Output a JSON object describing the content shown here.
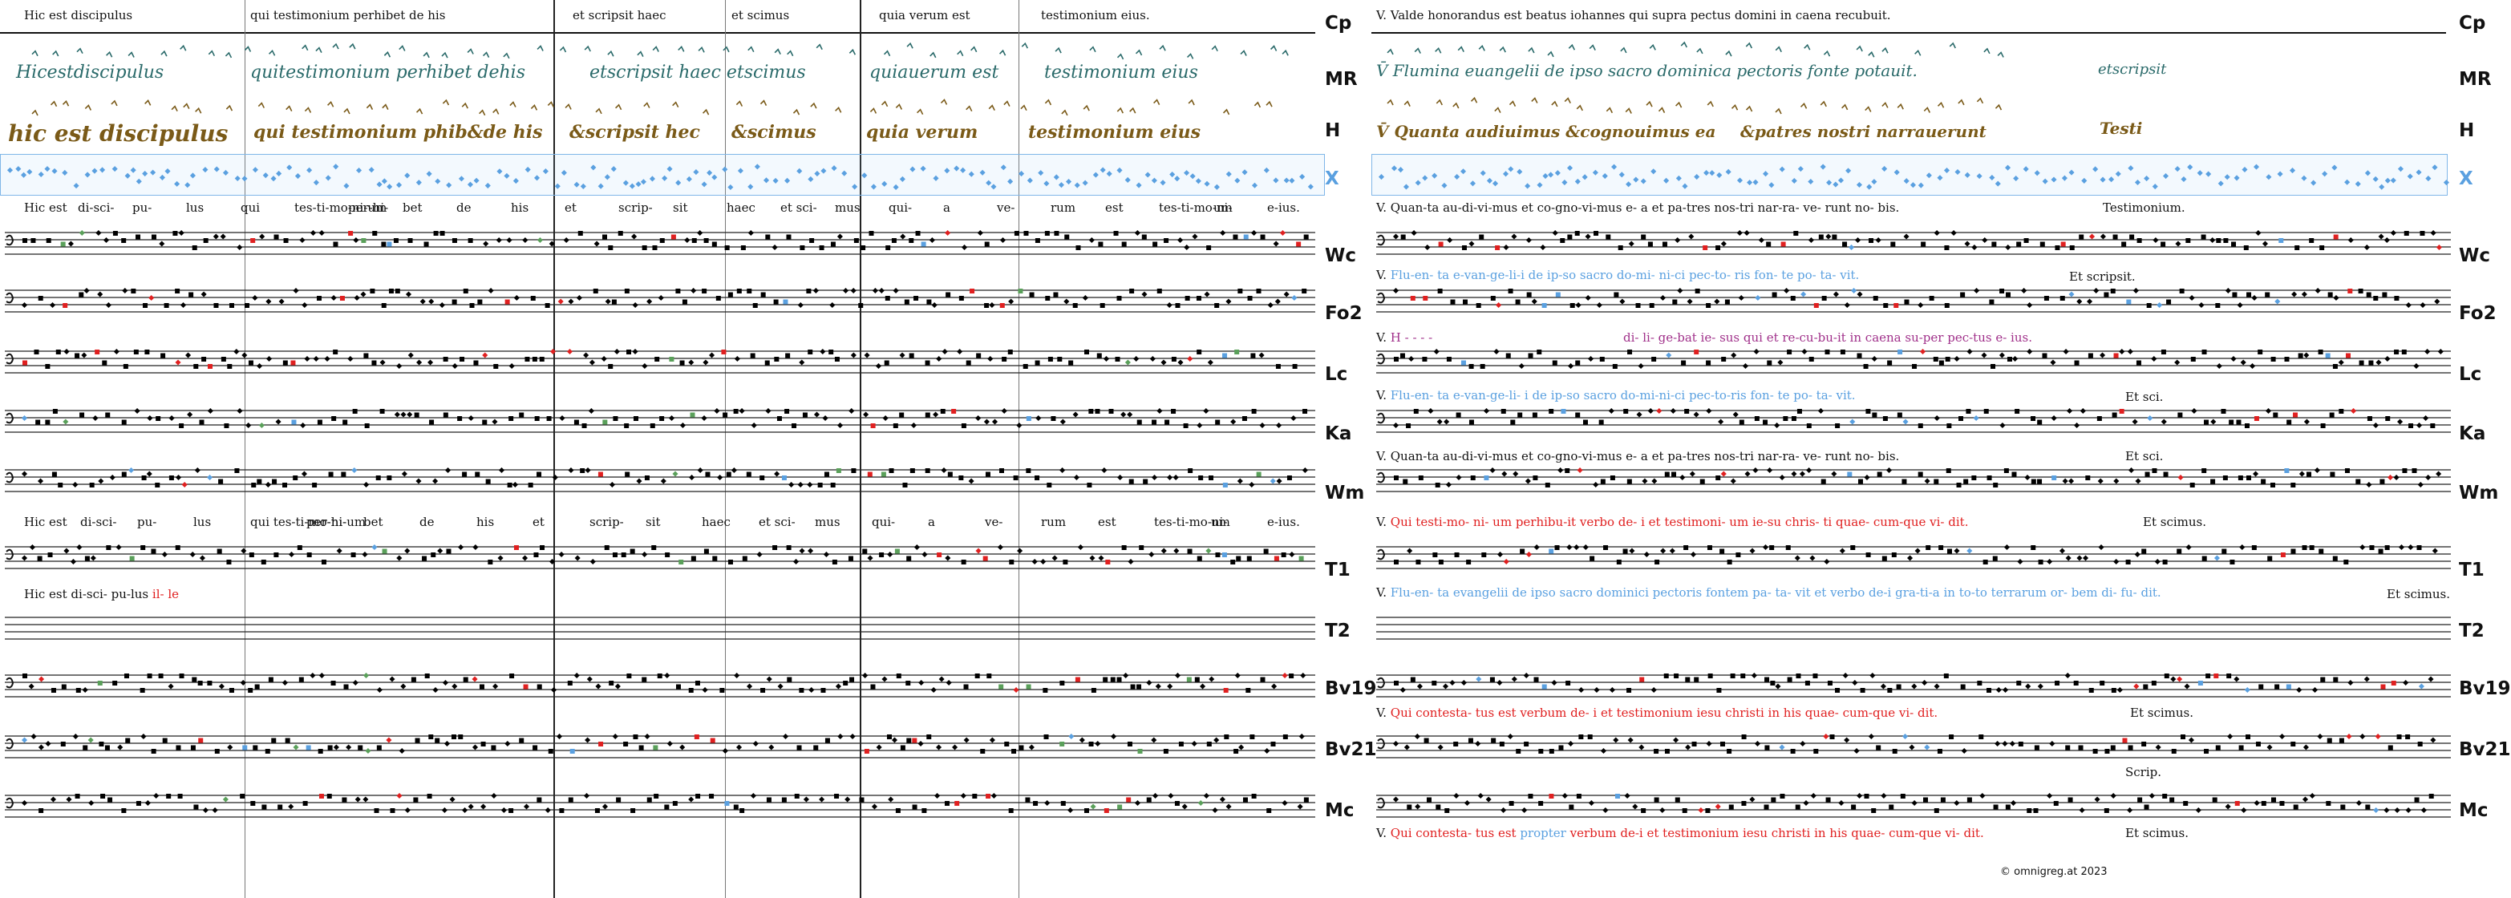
{
  "left_header": [
    "Hic est discipulus",
    "qui testimonium perhibet de his",
    "et scripsit haec",
    "et scimus",
    "quia verum est",
    "testimonium eius."
  ],
  "right_header": "V. Valde honorandus est beatus iohannes qui supra pectus domini in caena recubuit.",
  "row_labels": [
    "Cp",
    "MR",
    "H",
    "X",
    "Wc",
    "Fo2",
    "Lc",
    "Ka",
    "Wm",
    "T1",
    "T2",
    "Bv19",
    "Bv21",
    "Mc"
  ],
  "manuscripts": {
    "mr_left": [
      "Hicestdiscipulus",
      "quitestimonium perhibet dehis",
      "etscripsit haec etscimus",
      "quiauerum est",
      "testimonium eius"
    ],
    "h_left": [
      "hic est discipulus",
      "qui testimonium phib&de his",
      "&scripsit hec",
      "&scimus",
      "quia verum",
      "testimonium eius"
    ],
    "mr_right": [
      "V̄ Flumina euangelii de ipso sacro dominica pectoris fonte potauit.",
      "etscripsit"
    ],
    "h_right": [
      "V̄ Quanta audiuimus &cognouimus ea",
      "&patres nostri narrauerunt",
      "Testi"
    ]
  },
  "left_lyrics": {
    "x": [
      "Hic est",
      "di-sci-",
      "pu-",
      "lus",
      "qui",
      "tes-ti-mo-ni-um",
      "per-hi-",
      "bet",
      "de",
      "his",
      "et",
      "scrip-",
      "sit",
      "haec",
      "et sci-",
      "mus",
      "qui-",
      "a",
      "ve-",
      "rum",
      "est",
      "tes-ti-mo-ni-",
      "um",
      "e-ius."
    ],
    "wm": [
      "Hic est",
      "di-sci-",
      "pu-",
      "lus",
      "qui tes-ti-mo-ni-um",
      "per-hi-",
      "bet",
      "de",
      "his",
      "et",
      "scrip-",
      "sit",
      "haec",
      "et sci-",
      "mus",
      "qui-",
      "a",
      "ve-",
      "rum",
      "est",
      "tes-ti-mo-ni-",
      "um",
      "e-ius."
    ],
    "t1_black": "Hic est   di-sci- pu-lus",
    "t1_red": "il- le"
  },
  "right_lyrics": {
    "x": "V. Quan-ta    au-di-vi-mus   et co-gno-vi-mus  e-    a     et    pa-tres nos-tri  nar-ra-     ve-   runt    no-     bis.",
    "x_end": "Testimonium.",
    "wc_prefix": "V.",
    "wc_blue": "Flu-en-  ta         e-van-ge-li-i    de ip-so sacro do-mi- ni-ci pec-to- ris      fon-     te    po-      ta-      vit.",
    "wc_end": "Et scripsit.",
    "fo2_prefix": "V.",
    "fo2_h": "H  - - - -",
    "fo2_purple": "di- li-  ge-bat ie-  sus    qui et re-cu-bu-it in caena su-per    pec-tus    e-         ius.",
    "lc_prefix": "V.",
    "lc_blue": "Flu-en-  ta         e-van-ge-li-  i        de      ip-so sacro  do-mi-ni-ci pec-to-ris  fon-    te   po-       ta-      vit.",
    "lc_end": "Et sci.",
    "ka": "V. Quan-ta    au-di-vi-mus   et co-gno-vi-mus  e-    a     et    pa-tres nos-tri  nar-ra-     ve-   runt    no-     bis.",
    "ka_end": "Et sci.",
    "wm_prefix": "V.",
    "wm_red": "Qui testi-mo-   ni-  um       perhibu-it verbo de- i    et testimoni- um ie-su chris-  ti      quae-   cum-que       vi-      dit.",
    "wm_end": "Et scimus.",
    "t1_prefix": "V.",
    "t1_blue": "Flu-en-  ta         evangelii de ipso sacro dominici    pectoris fontem pa-  ta-  vit     et     verbo de-i  gra-ti-a  in to-to terrarum or-      bem di-          fu-        dit.",
    "t1_end": "Et scimus.",
    "bv19_prefix": "V.",
    "bv19_red": "Qui contesta-   tus   est       verbum de-   i      et      testimonium iesu christi in his quae-    cum-que       vi-        dit.",
    "bv19_end": "Et scimus.",
    "bv21_end": "Scrip.",
    "mc_prefix": "V.",
    "mc_red1": "Qui contesta- tus  est",
    "mc_blue": "propter",
    "mc_red2": "verbum de-i      et      testimonium iesu christi in his quae-    cum-que       vi-        dit.",
    "mc_end": "Et scimus."
  },
  "footer": "©  omnigreg.at    2023",
  "colors": {
    "mr": "#2a6a6a",
    "h": "#7a5a18",
    "x_blue": "#5aa0e0",
    "red": "#e02020",
    "green": "#5aa05a",
    "purple": "#a0308a"
  }
}
